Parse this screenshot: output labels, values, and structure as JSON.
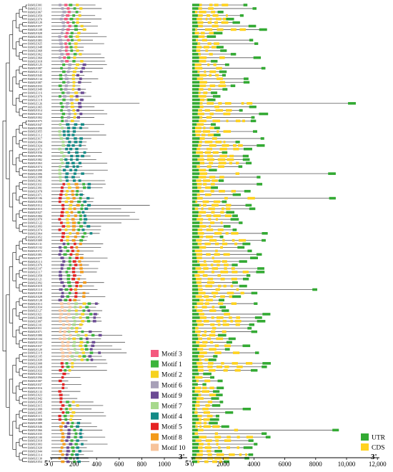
{
  "colors": {
    "line": "#555555",
    "tree": "#222222",
    "utr": "#33aa33",
    "cds": "#ffd21e",
    "motif": {
      "Motif 3": "#f4587e",
      "Motif 1": "#3cb43c",
      "Motif 2": "#f6d21f",
      "Motif 6": "#a7a0b8",
      "Motif 9": "#6b4a94",
      "Motif 7": "#a7d98c",
      "Motif 4": "#138a86",
      "Motif 5": "#e52222",
      "Motif 8": "#f39a1a",
      "Motif 10": "#f7c39a"
    }
  },
  "legend_motifs": [
    "Motif 3",
    "Motif 1",
    "Motif 2",
    "Motif 6",
    "Motif 9",
    "Motif 7",
    "Motif 4",
    "Motif 5",
    "Motif 8",
    "Motif 10"
  ],
  "legend_gene": [
    "UTR",
    "CDS"
  ],
  "motif_axis": {
    "ticks": [
      "0",
      "200",
      "400",
      "600",
      "800",
      "1000"
    ],
    "tick_values": [
      0,
      200,
      400,
      600,
      800,
      1000
    ],
    "end_left": "5'",
    "end_right": "3'"
  },
  "gene_axis": {
    "ticks": [
      "0",
      "2000",
      "4000",
      "6000",
      "8000",
      "10,000",
      "12,000"
    ],
    "tick_values": [
      0,
      2000,
      4000,
      6000,
      8000,
      10000,
      12000
    ],
    "end_left": "5'",
    "end_right": "3'"
  },
  "genes": [
    "BhMLE001",
    "BhMLE111",
    "BhMLE067",
    "BhMLE059",
    "BhMLE070",
    "BhMLE129",
    "BhMLE057",
    "BhMLE108",
    "BhMLE028",
    "BhMLE003",
    "BhMLE083",
    "BhMLE025",
    "BhMLE048",
    "BhMLE068",
    "BhMLE062",
    "BhMLE060",
    "BhMLE018",
    "BhMLE125",
    "BhMLE087",
    "BhMLE132",
    "BhMLE045",
    "BhMLE134",
    "BhMLE087",
    "BhMLE033",
    "BhMLE049",
    "BhMLE116",
    "BhMLE079",
    "BhMLE118",
    "BhMLE126",
    "BhMLE065",
    "BhMLE014",
    "BhMLE032",
    "BhMLE002",
    "BhMLE075",
    "BhMLE047",
    "BhMLE090",
    "BhMLE055",
    "BhMLE112",
    "BhMLE017",
    "BhMLE094",
    "BhMLE024",
    "BhMLE073",
    "BhMLE036",
    "BhMLE092",
    "BhMLE082",
    "BhMLE063",
    "BhMLE074",
    "BhMLE099",
    "BhMLE006",
    "BhMLE098",
    "BhMLE061",
    "BhMLE031",
    "BhMLE091",
    "BhMLE078",
    "BhMLE071",
    "BhMLE106",
    "BhMLE056",
    "BhMLE012",
    "BhMLE015",
    "BhMLE027",
    "BhMLE084",
    "BhMLE070",
    "BhMLE122",
    "BhMLE093",
    "BhMLE074",
    "BhMLE064",
    "BhMLE052",
    "BhMLE009",
    "BhMLE131",
    "BhMLE102",
    "BhMLE072",
    "BhMLE081",
    "BhMLE077",
    "BhMLE113",
    "BhMLE076",
    "BhMLE107",
    "BhMLE117",
    "BhMLE058",
    "BhMLE121",
    "BhMLE092",
    "BhMLE019",
    "BhMLE110",
    "BhMLE030",
    "BhMLE029",
    "BhMLE128",
    "BhMLE013",
    "BhMLE034",
    "BhMLE127",
    "BhMLE021",
    "BhMLE040",
    "BhMLE097",
    "BhMLE101",
    "BhMLE011",
    "BhMLE071",
    "BhMLE080",
    "BhMLE104",
    "BhMLE103",
    "BhMLE037",
    "BhMLE120",
    "BhMLE119",
    "BhMLE105",
    "BhMLE039",
    "BhMLE008",
    "BhMLE038",
    "BhMLE033",
    "BhMLE022",
    "BhMLE096",
    "BhMLE007",
    "BhMLE037",
    "BhMLE016",
    "BhMLE133",
    "BhMLE023",
    "BhMLE042",
    "BhMLE050",
    "BhMLE015",
    "BhMLE099",
    "BhMLE095",
    "BhMLE115",
    "BhMLE088",
    "BhMLE089",
    "BhMLE046",
    "BhMLE066",
    "BhMLE035",
    "BhMLE100",
    "BhMLE010",
    "BhMLE003",
    "BhMLE020",
    "BhMLE044",
    "BhMLE114",
    "BhMLE130",
    "BhMLE054"
  ]
}
